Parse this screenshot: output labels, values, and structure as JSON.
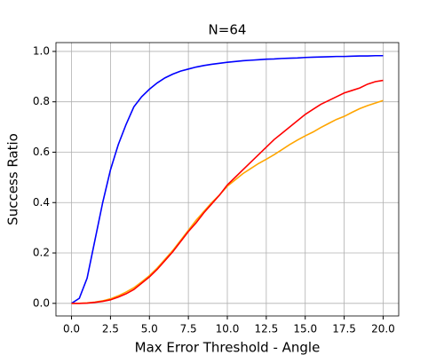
{
  "chart_data": {
    "type": "line",
    "title": "N=64",
    "x_label": "Max Error Threshold - Angle",
    "y_label": "Success Ratio",
    "x": [
      0,
      0.5,
      1,
      1.5,
      2,
      2.5,
      3,
      3.5,
      4,
      4.5,
      5,
      5.5,
      6,
      6.5,
      7,
      7.5,
      8,
      8.5,
      9,
      9.5,
      10,
      10.5,
      11,
      11.5,
      12,
      12.5,
      13,
      13.5,
      14,
      14.5,
      15,
      15.5,
      16,
      16.5,
      17,
      17.5,
      18,
      18.5,
      19,
      19.5,
      20
    ],
    "series": [
      {
        "color": "#0000ff",
        "values": [
          0,
          0.02,
          0.1,
          0.25,
          0.4,
          0.53,
          0.63,
          0.71,
          0.78,
          0.82,
          0.85,
          0.875,
          0.895,
          0.91,
          0.922,
          0.93,
          0.938,
          0.944,
          0.949,
          0.953,
          0.957,
          0.96,
          0.963,
          0.965,
          0.967,
          0.969,
          0.97,
          0.972,
          0.973,
          0.974,
          0.976,
          0.977,
          0.978,
          0.979,
          0.98,
          0.98,
          0.981,
          0.982,
          0.982,
          0.983,
          0.983
        ]
      },
      {
        "color": "#ffa500",
        "values": [
          0,
          0,
          0.002,
          0.005,
          0.01,
          0.018,
          0.03,
          0.045,
          0.062,
          0.085,
          0.11,
          0.14,
          0.175,
          0.21,
          0.25,
          0.29,
          0.33,
          0.365,
          0.4,
          0.43,
          0.465,
          0.49,
          0.515,
          0.535,
          0.555,
          0.572,
          0.59,
          0.61,
          0.63,
          0.648,
          0.665,
          0.68,
          0.698,
          0.714,
          0.73,
          0.742,
          0.758,
          0.773,
          0.785,
          0.795,
          0.805
        ]
      },
      {
        "color": "#ff0000",
        "values": [
          0,
          0,
          0.001,
          0.004,
          0.008,
          0.014,
          0.025,
          0.038,
          0.055,
          0.08,
          0.105,
          0.135,
          0.17,
          0.205,
          0.245,
          0.285,
          0.32,
          0.36,
          0.395,
          0.43,
          0.47,
          0.5,
          0.53,
          0.56,
          0.59,
          0.62,
          0.65,
          0.675,
          0.7,
          0.725,
          0.75,
          0.77,
          0.79,
          0.805,
          0.82,
          0.835,
          0.845,
          0.855,
          0.87,
          0.88,
          0.885
        ]
      }
    ],
    "xlim": [
      -1,
      21
    ],
    "ylim": [
      -0.05,
      1.035
    ],
    "xticks": [
      {
        "value": 0,
        "label": "0.0"
      },
      2.5,
      {
        "value": 5,
        "label": "5.0"
      },
      7.5,
      {
        "value": 10,
        "label": "10.0"
      },
      12.5,
      {
        "value": 15,
        "label": "15.0"
      },
      17.5,
      {
        "value": 20,
        "label": "20.0"
      }
    ],
    "yticks": [
      {
        "value": 0,
        "label": "0.0"
      },
      0.2,
      0.4,
      0.6,
      0.8,
      {
        "value": 1,
        "label": "1.0"
      }
    ],
    "grid": true
  }
}
